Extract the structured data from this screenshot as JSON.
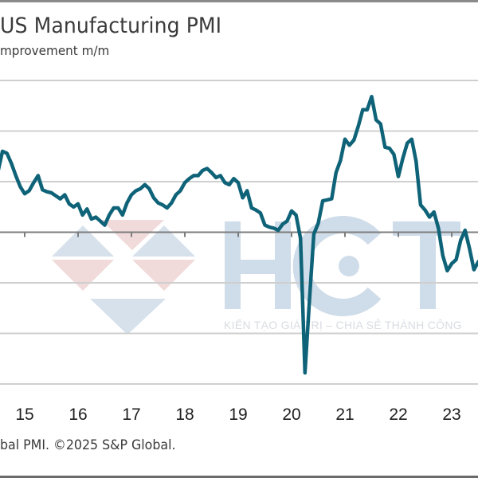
{
  "header": {
    "title": "US Manufacturing PMI",
    "subtitle": "mprovement m/m"
  },
  "footer": {
    "source": "bal PMI. ©2025 S&P Global."
  },
  "watermark": {
    "letters": "HCT",
    "tagline": "KIẾN TẠO GIÁ TRỊ – CHIA SẺ THÀNH CÔNG",
    "colors": {
      "blue": "#cfdce9",
      "red": "#efd4d4"
    }
  },
  "colors": {
    "line": "#0f6378",
    "grid": "#cfcfcf",
    "axis": "#7d7d7d"
  },
  "chart_data": {
    "type": "line",
    "title": "US Manufacturing PMI",
    "subtitle": "mprovement m/m",
    "xlabel": "",
    "ylabel": "",
    "x_tick_labels": [
      "15",
      "16",
      "17",
      "18",
      "19",
      "20",
      "21",
      "22",
      "23"
    ],
    "x_start": "2014-07",
    "x_range_years": [
      2014.5,
      2023.6
    ],
    "ylim": [
      35,
      65
    ],
    "y_gridlines": [
      35,
      40,
      45,
      50,
      55,
      60,
      65
    ],
    "baseline": 50,
    "grid": true,
    "legend": "none",
    "series": [
      {
        "name": "US Manufacturing PMI",
        "frequency": "monthly",
        "values": [
          56.0,
          58.0,
          57.8,
          56.8,
          55.6,
          54.5,
          53.8,
          54.1,
          54.9,
          55.6,
          54.2,
          54.0,
          53.9,
          53.6,
          53.3,
          53.7,
          52.8,
          52.5,
          52.8,
          51.7,
          52.3,
          51.3,
          51.5,
          51.1,
          50.7,
          51.7,
          52.4,
          52.4,
          51.7,
          52.9,
          53.7,
          54.1,
          54.3,
          54.7,
          54.3,
          53.4,
          52.9,
          52.7,
          52.4,
          52.9,
          53.7,
          54.1,
          54.9,
          55.3,
          55.6,
          55.6,
          56.1,
          56.3,
          55.9,
          55.4,
          55.6,
          54.9,
          54.7,
          55.3,
          54.9,
          53.4,
          54.1,
          52.4,
          52.2,
          51.9,
          50.7,
          50.5,
          50.4,
          50.2,
          50.8,
          51.1,
          52.1,
          51.7,
          49.4,
          36.1,
          43.1,
          49.8,
          50.9,
          53.1,
          53.2,
          53.3,
          55.9,
          57.1,
          59.2,
          58.6,
          59.1,
          60.5,
          62.1,
          62.1,
          63.4,
          61.1,
          60.7,
          58.4,
          58.3,
          57.7,
          55.5,
          57.3,
          58.8,
          59.2,
          57.0,
          52.7,
          52.2,
          51.5,
          52.0,
          50.4,
          47.7,
          46.2,
          46.9,
          47.3,
          49.2,
          50.2,
          48.4,
          46.3,
          47.1
        ]
      }
    ]
  }
}
